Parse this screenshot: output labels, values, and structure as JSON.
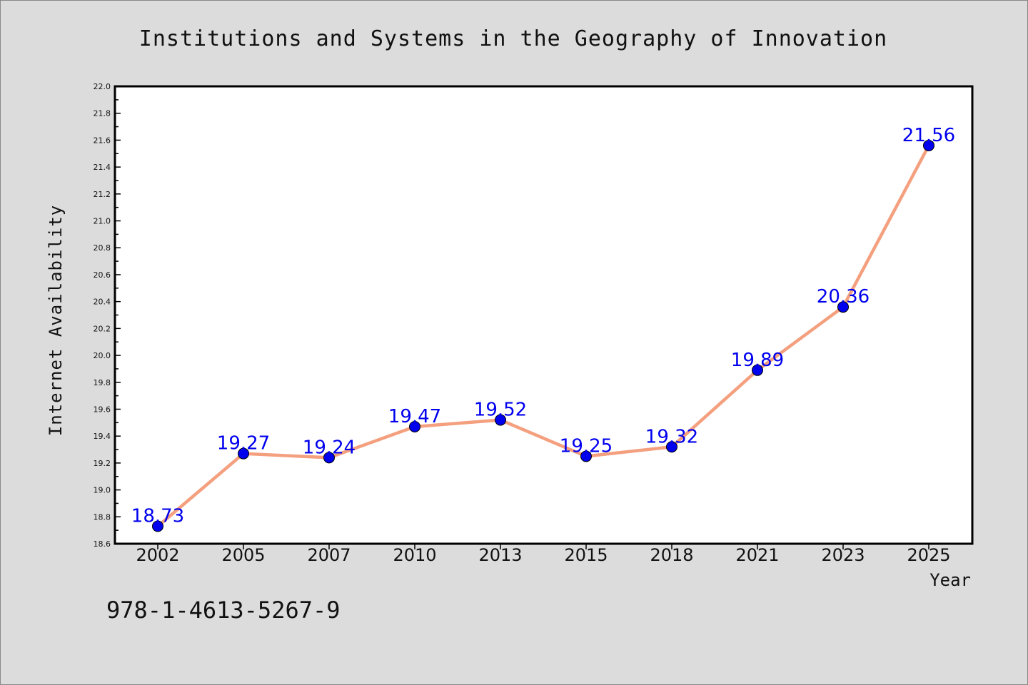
{
  "chart_data": {
    "type": "line",
    "title": "Institutions and Systems in the Geography of Innovation",
    "xlabel": "Year",
    "ylabel": "Internet Availability",
    "categories": [
      "2002",
      "2005",
      "2007",
      "2010",
      "2013",
      "2015",
      "2018",
      "2021",
      "2023",
      "2025"
    ],
    "series": [
      {
        "values": [
          18.73,
          19.27,
          19.24,
          19.47,
          19.52,
          19.25,
          19.32,
          19.89,
          20.36,
          21.56
        ],
        "line_color": "#f4a07f",
        "marker_color": "#0000ee"
      }
    ],
    "data_labels": [
      "18.73",
      "19.27",
      "19.24",
      "19.47",
      "19.52",
      "19.25",
      "19.32",
      "19.89",
      "20.36",
      "21.56"
    ],
    "ylim": [
      18.6,
      22.0
    ],
    "yticks": [
      "18.6",
      "18.8",
      "19.0",
      "19.2",
      "19.4",
      "19.6",
      "19.8",
      "20.0",
      "20.2",
      "20.4",
      "20.6",
      "20.8",
      "21.0",
      "21.2",
      "21.4",
      "21.6",
      "21.8",
      "22.0"
    ],
    "grid": false,
    "legend": "none"
  },
  "footer": {
    "isbn": "978-1-4613-5267-9"
  }
}
